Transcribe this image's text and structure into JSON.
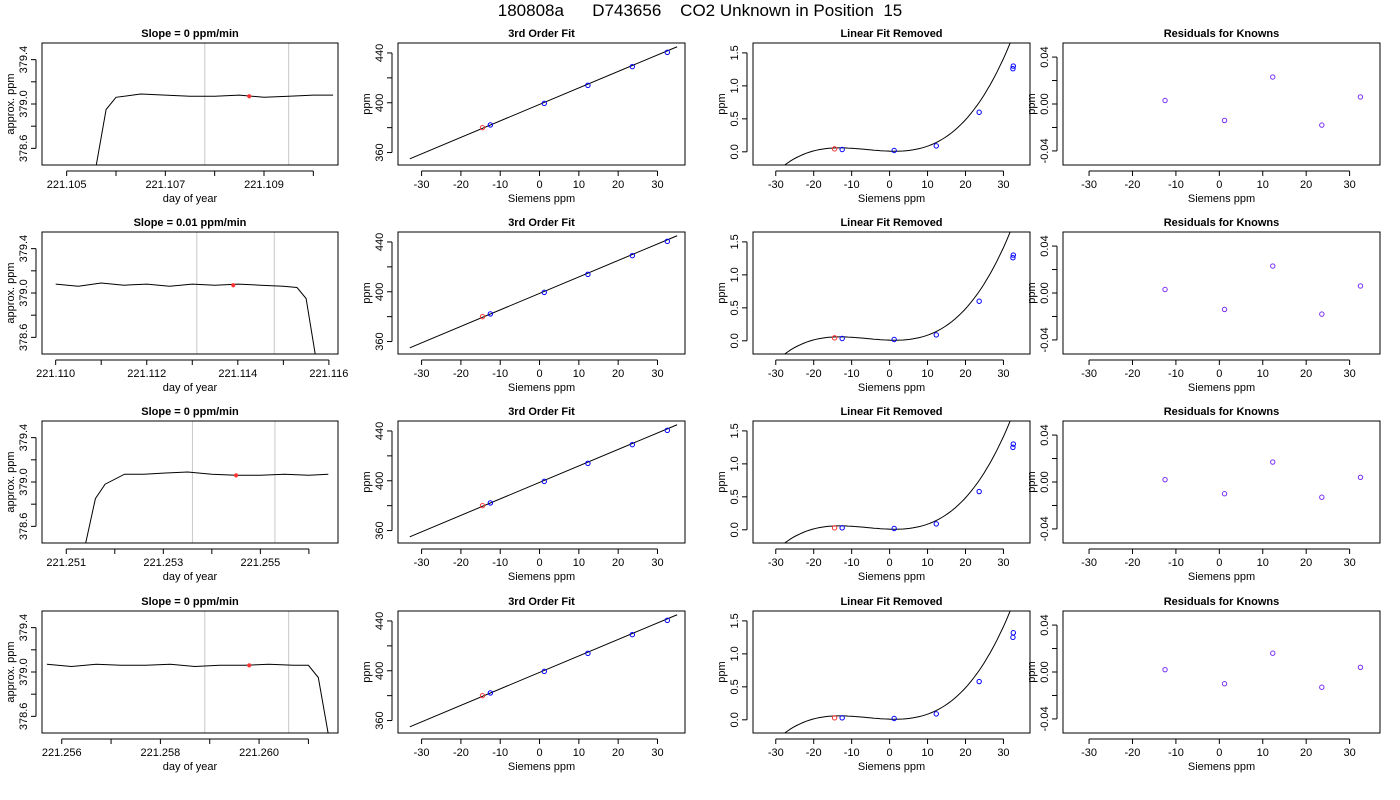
{
  "title": "180808a      D743656    CO2 Unknown in Position  15",
  "chart_data": [
    {
      "type": "line",
      "title": "Slope =  0  ppm/min",
      "xlabel": "day of year",
      "ylabel": "approx. ppm",
      "xlim": [
        221.1045,
        221.1105
      ],
      "ylim": [
        378.45,
        379.55
      ],
      "xticks": [
        221.105,
        221.106,
        221.107,
        221.108,
        221.109,
        221.11
      ],
      "xtick_labels": [
        "221.105",
        "",
        "221.107",
        "",
        "221.109",
        ""
      ],
      "yticks": [
        378.6,
        378.8,
        379.0,
        379.2,
        379.4
      ],
      "ytick_labels": [
        "378.6",
        "",
        "379.0",
        "",
        "379.4"
      ],
      "vlines": [
        221.1078,
        221.1095
      ],
      "marker": {
        "x": 221.1087,
        "y": 379.07,
        "color": "#ff3333"
      },
      "trace": {
        "x": [
          221.1056,
          221.1058,
          221.106,
          221.1065,
          221.107,
          221.1075,
          221.108,
          221.1085,
          221.109,
          221.1095,
          221.11,
          221.1104
        ],
        "y": [
          378.45,
          378.95,
          379.06,
          379.09,
          379.08,
          379.07,
          379.07,
          379.08,
          379.06,
          379.07,
          379.08,
          379.08
        ]
      }
    },
    {
      "type": "scatter",
      "title": "3rd Order Fit",
      "xlabel": "Siemens ppm",
      "ylabel": "ppm",
      "xlim": [
        -36,
        37
      ],
      "ylim": [
        350,
        448
      ],
      "xticks": [
        -30,
        -20,
        -10,
        0,
        10,
        20,
        30
      ],
      "xtick_labels": [
        "-30",
        "-20",
        "-10",
        "0",
        "10",
        "20",
        "30"
      ],
      "yticks": [
        360,
        380,
        400,
        420,
        440
      ],
      "ytick_labels": [
        "360",
        "",
        "400",
        "",
        "440"
      ],
      "fit_line": {
        "x0": -33,
        "y0": 355,
        "x1": 35,
        "y1": 445
      },
      "points_x": [
        -14.5,
        -12.5,
        1.2,
        12.3,
        23.6,
        32.5
      ],
      "points_y": [
        380,
        382.2,
        399.5,
        414,
        429,
        440.5
      ],
      "point_colors": [
        "#ff3333",
        "#0000ff",
        "#0000ff",
        "#0000ff",
        "#0000ff",
        "#0000ff"
      ]
    },
    {
      "type": "scatter",
      "title": "Linear Fit Removed",
      "xlabel": "Siemens ppm",
      "ylabel": "ppm",
      "xlim": [
        -36,
        37
      ],
      "ylim": [
        -0.2,
        1.65
      ],
      "xticks": [
        -30,
        -20,
        -10,
        0,
        10,
        20,
        30
      ],
      "xtick_labels": [
        "-30",
        "-20",
        "-10",
        "0",
        "10",
        "20",
        "30"
      ],
      "yticks": [
        0,
        0.5,
        1.0,
        1.5
      ],
      "ytick_labels": [
        "0.0",
        "0.5",
        "1.0",
        "1.5"
      ],
      "curve": {
        "a": 3.4e-05,
        "b": 0.0006,
        "c": -0.0018,
        "d": 0.01,
        "xmin": -33,
        "xmax": 35
      },
      "points_x": [
        -14.5,
        -12.5,
        1.2,
        12.3,
        23.6,
        32.5,
        32.6
      ],
      "points_y": [
        0.045,
        0.035,
        0.02,
        0.09,
        0.6,
        1.26,
        1.3
      ],
      "point_colors": [
        "#ff3333",
        "#0000ff",
        "#0000ff",
        "#0000ff",
        "#0000ff",
        "#0000ff",
        "#0000ff"
      ]
    },
    {
      "type": "scatter",
      "title": "Residuals for Knowns",
      "xlabel": "Siemens ppm",
      "ylabel": "ppm",
      "xlim": [
        -36,
        37
      ],
      "ylim": [
        -0.052,
        0.052
      ],
      "xticks": [
        -30,
        -20,
        -10,
        0,
        10,
        20,
        30
      ],
      "xtick_labels": [
        "-30",
        "-20",
        "-10",
        "0",
        "10",
        "20",
        "30"
      ],
      "yticks": [
        -0.04,
        -0.02,
        0,
        0.02,
        0.04
      ],
      "ytick_labels": [
        "-0.04",
        "",
        "0.00",
        "",
        "0.04"
      ],
      "points_x": [
        -12.5,
        1.2,
        12.3,
        23.6,
        32.5
      ],
      "points_y": [
        0.003,
        -0.014,
        0.023,
        -0.018,
        0.006
      ],
      "point_colors": [
        "#7b2ff7",
        "#7b2ff7",
        "#7b2ff7",
        "#7b2ff7",
        "#7b2ff7"
      ]
    },
    {
      "type": "line",
      "title": "Slope =  0.01  ppm/min",
      "xlabel": "day of year",
      "ylabel": "approx. ppm",
      "xlim": [
        221.1097,
        221.1162
      ],
      "ylim": [
        378.45,
        379.55
      ],
      "xticks": [
        221.11,
        221.111,
        221.112,
        221.113,
        221.114,
        221.115,
        221.116
      ],
      "xtick_labels": [
        "221.110",
        "",
        "221.112",
        "",
        "221.114",
        "",
        "221.116"
      ],
      "yticks": [
        378.6,
        378.8,
        379.0,
        379.2,
        379.4
      ],
      "ytick_labels": [
        "378.6",
        "",
        "379.0",
        "",
        "379.4"
      ],
      "vlines": [
        221.1131,
        221.1148
      ],
      "marker": {
        "x": 221.1139,
        "y": 379.07,
        "color": "#ff3333"
      },
      "trace": {
        "x": [
          221.11,
          221.1105,
          221.111,
          221.1115,
          221.112,
          221.1125,
          221.113,
          221.1135,
          221.114,
          221.1145,
          221.115,
          221.1153,
          221.1155,
          221.1157
        ],
        "y": [
          379.08,
          379.06,
          379.09,
          379.07,
          379.08,
          379.06,
          379.08,
          379.07,
          379.08,
          379.07,
          379.06,
          379.05,
          378.95,
          378.45
        ]
      }
    },
    {
      "type": "scatter",
      "title": "3rd Order Fit",
      "xlabel": "Siemens ppm",
      "ylabel": "ppm",
      "xlim": [
        -36,
        37
      ],
      "ylim": [
        350,
        448
      ],
      "xticks": [
        -30,
        -20,
        -10,
        0,
        10,
        20,
        30
      ],
      "xtick_labels": [
        "-30",
        "-20",
        "-10",
        "0",
        "10",
        "20",
        "30"
      ],
      "yticks": [
        360,
        380,
        400,
        420,
        440
      ],
      "ytick_labels": [
        "360",
        "",
        "400",
        "",
        "440"
      ],
      "fit_line": {
        "x0": -33,
        "y0": 355,
        "x1": 35,
        "y1": 445
      },
      "points_x": [
        -14.5,
        -12.5,
        1.2,
        12.3,
        23.6,
        32.5
      ],
      "points_y": [
        380,
        382.2,
        399.5,
        414,
        429,
        440.5
      ],
      "point_colors": [
        "#ff3333",
        "#0000ff",
        "#0000ff",
        "#0000ff",
        "#0000ff",
        "#0000ff"
      ]
    },
    {
      "type": "scatter",
      "title": "Linear Fit Removed",
      "xlabel": "Siemens ppm",
      "ylabel": "ppm",
      "xlim": [
        -36,
        37
      ],
      "ylim": [
        -0.2,
        1.65
      ],
      "xticks": [
        -30,
        -20,
        -10,
        0,
        10,
        20,
        30
      ],
      "xtick_labels": [
        "-30",
        "-20",
        "-10",
        "0",
        "10",
        "20",
        "30"
      ],
      "yticks": [
        0,
        0.5,
        1.0,
        1.5
      ],
      "ytick_labels": [
        "0.0",
        "0.5",
        "1.0",
        "1.5"
      ],
      "curve": {
        "a": 3.4e-05,
        "b": 0.0006,
        "c": -0.0018,
        "d": 0.01,
        "xmin": -33,
        "xmax": 35
      },
      "points_x": [
        -14.5,
        -12.5,
        1.2,
        12.3,
        23.6,
        32.5,
        32.6
      ],
      "points_y": [
        0.045,
        0.035,
        0.02,
        0.09,
        0.6,
        1.26,
        1.3
      ],
      "point_colors": [
        "#ff3333",
        "#0000ff",
        "#0000ff",
        "#0000ff",
        "#0000ff",
        "#0000ff",
        "#0000ff"
      ]
    },
    {
      "type": "scatter",
      "title": "Residuals for Knowns",
      "xlabel": "Siemens ppm",
      "ylabel": "ppm",
      "xlim": [
        -36,
        37
      ],
      "ylim": [
        -0.052,
        0.052
      ],
      "xticks": [
        -30,
        -20,
        -10,
        0,
        10,
        20,
        30
      ],
      "xtick_labels": [
        "-30",
        "-20",
        "-10",
        "0",
        "10",
        "20",
        "30"
      ],
      "yticks": [
        -0.04,
        -0.02,
        0,
        0.02,
        0.04
      ],
      "ytick_labels": [
        "-0.04",
        "",
        "0.00",
        "",
        "0.04"
      ],
      "points_x": [
        -12.5,
        1.2,
        12.3,
        23.6,
        32.5
      ],
      "points_y": [
        0.003,
        -0.014,
        0.023,
        -0.018,
        0.006
      ],
      "point_colors": [
        "#7b2ff7",
        "#7b2ff7",
        "#7b2ff7",
        "#7b2ff7",
        "#7b2ff7"
      ]
    },
    {
      "type": "line",
      "title": "Slope =  0  ppm/min",
      "xlabel": "day of year",
      "ylabel": "approx. ppm",
      "xlim": [
        221.2505,
        221.2566
      ],
      "ylim": [
        378.45,
        379.55
      ],
      "xticks": [
        221.251,
        221.252,
        221.253,
        221.254,
        221.255,
        221.256
      ],
      "xtick_labels": [
        "221.251",
        "",
        "221.253",
        "",
        "221.255",
        ""
      ],
      "yticks": [
        378.6,
        378.8,
        379.0,
        379.2,
        379.4
      ],
      "ytick_labels": [
        "378.6",
        "",
        "379.0",
        "",
        "379.4"
      ],
      "vlines": [
        221.2536,
        221.2553
      ],
      "marker": {
        "x": 221.2545,
        "y": 379.06,
        "color": "#ff3333"
      },
      "trace": {
        "x": [
          221.2514,
          221.2516,
          221.2518,
          221.2522,
          221.2526,
          221.253,
          221.2535,
          221.254,
          221.2545,
          221.255,
          221.2555,
          221.256,
          221.2564
        ],
        "y": [
          378.45,
          378.85,
          378.98,
          379.07,
          379.07,
          379.08,
          379.09,
          379.07,
          379.06,
          379.06,
          379.07,
          379.06,
          379.07
        ]
      }
    },
    {
      "type": "scatter",
      "title": "3rd Order Fit",
      "xlabel": "Siemens ppm",
      "ylabel": "ppm",
      "xlim": [
        -36,
        37
      ],
      "ylim": [
        350,
        448
      ],
      "xticks": [
        -30,
        -20,
        -10,
        0,
        10,
        20,
        30
      ],
      "xtick_labels": [
        "-30",
        "-20",
        "-10",
        "0",
        "10",
        "20",
        "30"
      ],
      "yticks": [
        360,
        380,
        400,
        420,
        440
      ],
      "ytick_labels": [
        "360",
        "",
        "400",
        "",
        "440"
      ],
      "fit_line": {
        "x0": -33,
        "y0": 355,
        "x1": 35,
        "y1": 445
      },
      "points_x": [
        -14.5,
        -12.5,
        1.2,
        12.3,
        23.6,
        32.5
      ],
      "points_y": [
        380,
        382.2,
        399.5,
        414,
        429,
        440.5
      ],
      "point_colors": [
        "#ff3333",
        "#0000ff",
        "#0000ff",
        "#0000ff",
        "#0000ff",
        "#0000ff"
      ]
    },
    {
      "type": "scatter",
      "title": "Linear Fit Removed",
      "xlabel": "Siemens ppm",
      "ylabel": "ppm",
      "xlim": [
        -36,
        37
      ],
      "ylim": [
        -0.2,
        1.65
      ],
      "xticks": [
        -30,
        -20,
        -10,
        0,
        10,
        20,
        30
      ],
      "xtick_labels": [
        "-30",
        "-20",
        "-10",
        "0",
        "10",
        "20",
        "30"
      ],
      "yticks": [
        0,
        0.5,
        1.0,
        1.5
      ],
      "ytick_labels": [
        "0.0",
        "0.5",
        "1.0",
        "1.5"
      ],
      "curve": {
        "a": 3.4e-05,
        "b": 0.0006,
        "c": -0.0018,
        "d": 0.01,
        "xmin": -33,
        "xmax": 35
      },
      "points_x": [
        -14.5,
        -12.5,
        1.2,
        12.3,
        23.6,
        32.5,
        32.6
      ],
      "points_y": [
        0.03,
        0.03,
        0.02,
        0.09,
        0.58,
        1.25,
        1.3
      ],
      "point_colors": [
        "#ff3333",
        "#0000ff",
        "#0000ff",
        "#0000ff",
        "#0000ff",
        "#0000ff",
        "#0000ff"
      ]
    },
    {
      "type": "scatter",
      "title": "Residuals for Knowns",
      "xlabel": "Siemens ppm",
      "ylabel": "ppm",
      "xlim": [
        -36,
        37
      ],
      "ylim": [
        -0.052,
        0.052
      ],
      "xticks": [
        -30,
        -20,
        -10,
        0,
        10,
        20,
        30
      ],
      "xtick_labels": [
        "-30",
        "-20",
        "-10",
        "0",
        "10",
        "20",
        "30"
      ],
      "yticks": [
        -0.04,
        -0.02,
        0,
        0.02,
        0.04
      ],
      "ytick_labels": [
        "-0.04",
        "",
        "0.00",
        "",
        "0.04"
      ],
      "points_x": [
        -12.5,
        1.2,
        12.3,
        23.6,
        32.5
      ],
      "points_y": [
        0.002,
        -0.01,
        0.017,
        -0.013,
        0.004
      ],
      "point_colors": [
        "#7b2ff7",
        "#7b2ff7",
        "#7b2ff7",
        "#7b2ff7",
        "#7b2ff7"
      ]
    },
    {
      "type": "line",
      "title": "Slope =  0  ppm/min",
      "xlabel": "day of year",
      "ylabel": "approx. ppm",
      "xlim": [
        221.2556,
        221.2616
      ],
      "ylim": [
        378.45,
        379.55
      ],
      "xticks": [
        221.256,
        221.257,
        221.258,
        221.259,
        221.26,
        221.261
      ],
      "xtick_labels": [
        "221.256",
        "",
        "221.258",
        "",
        "221.260",
        ""
      ],
      "yticks": [
        378.6,
        378.8,
        379.0,
        379.2,
        379.4
      ],
      "ytick_labels": [
        "378.6",
        "",
        "379.0",
        "",
        "379.4"
      ],
      "vlines": [
        221.2589,
        221.2606
      ],
      "marker": {
        "x": 221.2598,
        "y": 379.06,
        "color": "#ff3333"
      },
      "trace": {
        "x": [
          221.2557,
          221.2562,
          221.2567,
          221.2572,
          221.2577,
          221.2582,
          221.2587,
          221.2592,
          221.2597,
          221.2602,
          221.2607,
          221.261,
          221.2612,
          221.2614
        ],
        "y": [
          379.07,
          379.05,
          379.07,
          379.06,
          379.06,
          379.07,
          379.05,
          379.06,
          379.06,
          379.07,
          379.06,
          379.06,
          378.95,
          378.45
        ]
      }
    },
    {
      "type": "scatter",
      "title": "3rd Order Fit",
      "xlabel": "Siemens ppm",
      "ylabel": "ppm",
      "xlim": [
        -36,
        37
      ],
      "ylim": [
        350,
        448
      ],
      "xticks": [
        -30,
        -20,
        -10,
        0,
        10,
        20,
        30
      ],
      "xtick_labels": [
        "-30",
        "-20",
        "-10",
        "0",
        "10",
        "20",
        "30"
      ],
      "yticks": [
        360,
        380,
        400,
        420,
        440
      ],
      "ytick_labels": [
        "360",
        "",
        "400",
        "",
        "440"
      ],
      "fit_line": {
        "x0": -33,
        "y0": 355,
        "x1": 35,
        "y1": 445
      },
      "points_x": [
        -14.5,
        -12.5,
        1.2,
        12.3,
        23.6,
        32.5
      ],
      "points_y": [
        380,
        382.2,
        399.5,
        414,
        429,
        440.5
      ],
      "point_colors": [
        "#ff3333",
        "#0000ff",
        "#0000ff",
        "#0000ff",
        "#0000ff",
        "#0000ff"
      ]
    },
    {
      "type": "scatter",
      "title": "Linear Fit Removed",
      "xlabel": "Siemens ppm",
      "ylabel": "ppm",
      "xlim": [
        -36,
        37
      ],
      "ylim": [
        -0.2,
        1.65
      ],
      "xticks": [
        -30,
        -20,
        -10,
        0,
        10,
        20,
        30
      ],
      "xtick_labels": [
        "-30",
        "-20",
        "-10",
        "0",
        "10",
        "20",
        "30"
      ],
      "yticks": [
        0,
        0.5,
        1.0,
        1.5
      ],
      "ytick_labels": [
        "0.0",
        "0.5",
        "1.0",
        "1.5"
      ],
      "curve": {
        "a": 3.4e-05,
        "b": 0.0006,
        "c": -0.0018,
        "d": 0.01,
        "xmin": -33,
        "xmax": 35
      },
      "points_x": [
        -14.5,
        -12.5,
        1.2,
        12.3,
        23.6,
        32.5,
        32.6
      ],
      "points_y": [
        0.03,
        0.03,
        0.02,
        0.09,
        0.58,
        1.25,
        1.32
      ],
      "point_colors": [
        "#ff3333",
        "#0000ff",
        "#0000ff",
        "#0000ff",
        "#0000ff",
        "#0000ff",
        "#0000ff"
      ]
    },
    {
      "type": "scatter",
      "title": "Residuals for Knowns",
      "xlabel": "Siemens ppm",
      "ylabel": "ppm",
      "xlim": [
        -36,
        37
      ],
      "ylim": [
        -0.052,
        0.052
      ],
      "xticks": [
        -30,
        -20,
        -10,
        0,
        10,
        20,
        30
      ],
      "xtick_labels": [
        "-30",
        "-20",
        "-10",
        "0",
        "10",
        "20",
        "30"
      ],
      "yticks": [
        -0.04,
        -0.02,
        0,
        0.02,
        0.04
      ],
      "ytick_labels": [
        "-0.04",
        "",
        "0.00",
        "",
        "0.04"
      ],
      "points_x": [
        -12.5,
        1.2,
        12.3,
        23.6,
        32.5
      ],
      "points_y": [
        0.002,
        -0.01,
        0.016,
        -0.013,
        0.004
      ],
      "point_colors": [
        "#7b2ff7",
        "#7b2ff7",
        "#7b2ff7",
        "#7b2ff7",
        "#7b2ff7"
      ]
    }
  ]
}
